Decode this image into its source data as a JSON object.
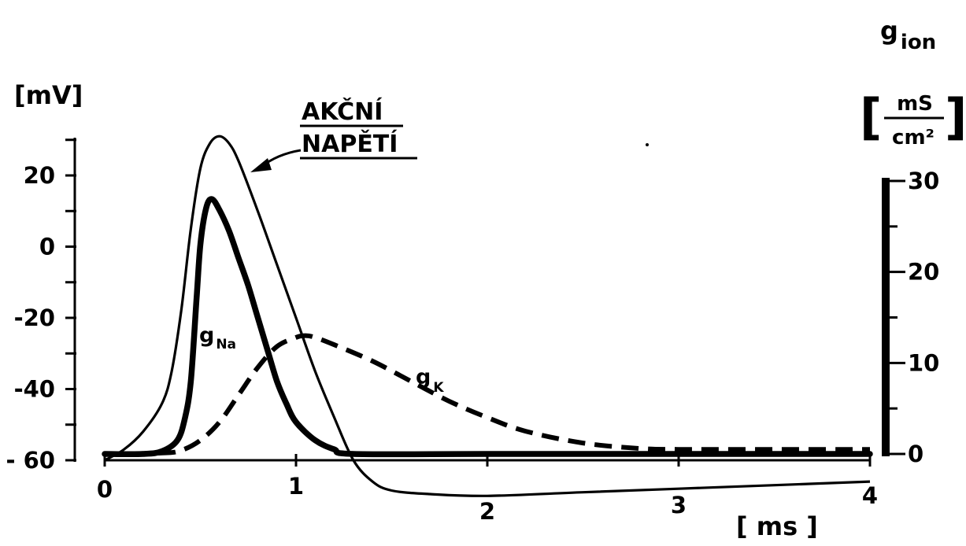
{
  "chart_data": {
    "type": "line",
    "x_axis": {
      "unit": "[ ms ]",
      "range": [
        0,
        4
      ],
      "ticks": [
        {
          "value": 0,
          "label": "0"
        },
        {
          "value": 1,
          "label": "1"
        },
        {
          "value": 2,
          "label": "2"
        },
        {
          "value": 3,
          "label": "3"
        },
        {
          "value": 4,
          "label": "4"
        }
      ]
    },
    "y_axis_left": {
      "unit": "[mV]",
      "range": [
        -60,
        30
      ],
      "ticks": [
        {
          "value": 20,
          "label": "20"
        },
        {
          "value": 0,
          "label": "0"
        },
        {
          "value": -20,
          "label": "-20"
        },
        {
          "value": -40,
          "label": "-40"
        },
        {
          "value": -60,
          "label": "- 60"
        }
      ]
    },
    "y_axis_right": {
      "title_main": "g",
      "title_sub": "ion",
      "unit_numerator": "mS",
      "unit_denominator": "cm²",
      "range": [
        0,
        30
      ],
      "ticks": [
        {
          "value": 30,
          "label": "30"
        },
        {
          "value": 20,
          "label": "20"
        },
        {
          "value": 10,
          "label": "10"
        },
        {
          "value": 0,
          "label": "0"
        }
      ]
    },
    "annotation": {
      "line1": "AKČNÍ",
      "line2": "NAPĚTÍ"
    },
    "series": [
      {
        "name": "AKČNÍ NAPĚTÍ",
        "axis": "left",
        "style": "thin-solid",
        "points": [
          [
            0,
            -60
          ],
          [
            0.1,
            -57
          ],
          [
            0.2,
            -52
          ],
          [
            0.3,
            -44
          ],
          [
            0.35,
            -35
          ],
          [
            0.4,
            -18
          ],
          [
            0.45,
            5
          ],
          [
            0.5,
            22
          ],
          [
            0.55,
            29
          ],
          [
            0.6,
            31
          ],
          [
            0.65,
            29
          ],
          [
            0.7,
            24
          ],
          [
            0.8,
            10
          ],
          [
            0.9,
            -5
          ],
          [
            1.0,
            -20
          ],
          [
            1.1,
            -35
          ],
          [
            1.2,
            -48
          ],
          [
            1.3,
            -60
          ],
          [
            1.4,
            -66
          ],
          [
            1.5,
            -68.5
          ],
          [
            1.7,
            -69.5
          ],
          [
            2.0,
            -70
          ],
          [
            2.5,
            -69
          ],
          [
            3.0,
            -68
          ],
          [
            3.5,
            -67
          ],
          [
            4.0,
            -66
          ]
        ]
      },
      {
        "name": "gNa",
        "label_main": "g",
        "label_sub": "Na",
        "axis": "right",
        "style": "thick-solid",
        "points": [
          [
            0,
            0
          ],
          [
            0.2,
            0
          ],
          [
            0.3,
            0.3
          ],
          [
            0.38,
            1.5
          ],
          [
            0.42,
            4
          ],
          [
            0.45,
            8
          ],
          [
            0.48,
            17
          ],
          [
            0.5,
            23
          ],
          [
            0.53,
            27
          ],
          [
            0.56,
            28
          ],
          [
            0.6,
            26.8
          ],
          [
            0.65,
            24.5
          ],
          [
            0.7,
            21.5
          ],
          [
            0.75,
            18.5
          ],
          [
            0.8,
            15
          ],
          [
            0.85,
            11.5
          ],
          [
            0.9,
            8
          ],
          [
            0.95,
            5.5
          ],
          [
            1.0,
            3.5
          ],
          [
            1.1,
            1.5
          ],
          [
            1.2,
            0.5
          ],
          [
            1.3,
            0
          ],
          [
            2.0,
            0
          ],
          [
            3.0,
            0
          ],
          [
            4.0,
            0
          ]
        ]
      },
      {
        "name": "gK",
        "label_main": "g",
        "label_sub": "K",
        "axis": "right",
        "style": "thick-dashed",
        "points": [
          [
            0,
            0
          ],
          [
            0.3,
            0.1
          ],
          [
            0.4,
            0.4
          ],
          [
            0.5,
            1.5
          ],
          [
            0.6,
            3.5
          ],
          [
            0.7,
            6.5
          ],
          [
            0.8,
            9.5
          ],
          [
            0.9,
            11.8
          ],
          [
            1.0,
            12.8
          ],
          [
            1.05,
            13
          ],
          [
            1.1,
            12.8
          ],
          [
            1.2,
            12
          ],
          [
            1.4,
            10.2
          ],
          [
            1.6,
            8
          ],
          [
            1.8,
            5.8
          ],
          [
            2.0,
            4
          ],
          [
            2.2,
            2.5
          ],
          [
            2.5,
            1.2
          ],
          [
            2.8,
            0.6
          ],
          [
            3.0,
            0.5
          ],
          [
            3.5,
            0.5
          ],
          [
            4.0,
            0.5
          ]
        ]
      }
    ]
  }
}
